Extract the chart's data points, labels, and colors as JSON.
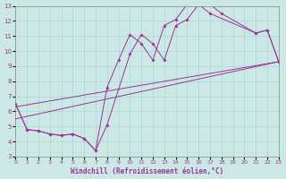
{
  "xlabel": "Windchill (Refroidissement éolien,°C)",
  "bg_color": "#cce8e4",
  "line_color": "#993399",
  "grid_color": "#aad8d4",
  "xlim": [
    0,
    23
  ],
  "ylim": [
    3,
    13
  ],
  "xticks": [
    0,
    1,
    2,
    3,
    4,
    5,
    6,
    7,
    8,
    9,
    10,
    11,
    12,
    13,
    14,
    15,
    16,
    17,
    18,
    19,
    20,
    21,
    22,
    23
  ],
  "yticks": [
    3,
    4,
    5,
    6,
    7,
    8,
    9,
    10,
    11,
    12,
    13
  ],
  "line1_x": [
    0,
    1,
    2,
    3,
    4,
    5,
    6,
    7,
    8,
    10,
    11,
    12,
    13,
    14,
    15,
    16,
    17,
    18,
    21,
    22,
    23
  ],
  "line1_y": [
    6.5,
    4.8,
    4.7,
    4.5,
    4.4,
    4.5,
    4.2,
    3.4,
    5.1,
    9.8,
    11.1,
    10.5,
    9.4,
    11.7,
    12.1,
    13.1,
    13.1,
    12.5,
    11.2,
    11.4,
    9.3
  ],
  "line2_x": [
    0,
    1,
    2,
    3,
    4,
    5,
    6,
    7,
    8,
    9,
    10,
    11,
    12,
    13,
    14,
    15,
    16,
    17,
    21,
    22,
    23
  ],
  "line2_y": [
    6.5,
    4.8,
    4.7,
    4.5,
    4.4,
    4.5,
    4.2,
    3.4,
    7.6,
    9.4,
    11.1,
    10.5,
    9.4,
    11.7,
    12.1,
    13.1,
    13.1,
    12.5,
    11.2,
    11.4,
    9.3
  ],
  "line3_x": [
    0,
    23
  ],
  "line3_y": [
    5.5,
    9.3
  ],
  "line4_x": [
    0,
    23
  ],
  "line4_y": [
    6.3,
    9.3
  ]
}
